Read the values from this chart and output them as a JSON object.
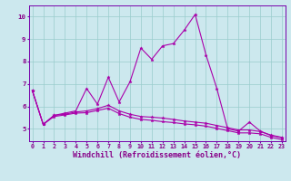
{
  "xlabel": "Windchill (Refroidissement éolien,°C)",
  "bg_color": "#cce8ee",
  "line_color": "#aa00aa",
  "grid_color": "#99cccc",
  "axis_color": "#880088",
  "spine_color": "#7700aa",
  "x_ticks": [
    0,
    1,
    2,
    3,
    4,
    5,
    6,
    7,
    8,
    9,
    10,
    11,
    12,
    13,
    14,
    15,
    16,
    17,
    18,
    19,
    20,
    21,
    22,
    23
  ],
  "y_ticks": [
    5,
    6,
    7,
    8,
    9,
    10
  ],
  "xlim": [
    -0.3,
    23.3
  ],
  "ylim": [
    4.45,
    10.5
  ],
  "line1": [
    6.7,
    5.2,
    5.6,
    5.7,
    5.8,
    6.8,
    6.1,
    7.3,
    6.2,
    7.1,
    8.6,
    8.1,
    8.7,
    8.8,
    9.4,
    10.1,
    8.3,
    6.8,
    5.0,
    4.9,
    5.3,
    4.9,
    4.7,
    4.6
  ],
  "line2": [
    6.7,
    5.2,
    5.6,
    5.65,
    5.75,
    5.8,
    5.9,
    6.05,
    5.8,
    5.65,
    5.55,
    5.52,
    5.48,
    5.42,
    5.35,
    5.3,
    5.25,
    5.15,
    5.05,
    4.95,
    4.95,
    4.88,
    4.72,
    4.62
  ],
  "line3": [
    6.7,
    5.2,
    5.55,
    5.62,
    5.7,
    5.72,
    5.82,
    5.92,
    5.68,
    5.52,
    5.42,
    5.38,
    5.32,
    5.28,
    5.22,
    5.18,
    5.12,
    5.02,
    4.92,
    4.82,
    4.82,
    4.78,
    4.62,
    4.52
  ],
  "marker": "*",
  "markersize": 2.5,
  "linewidth": 0.8,
  "tick_fontsize": 4.8,
  "xlabel_fontsize": 6.0
}
